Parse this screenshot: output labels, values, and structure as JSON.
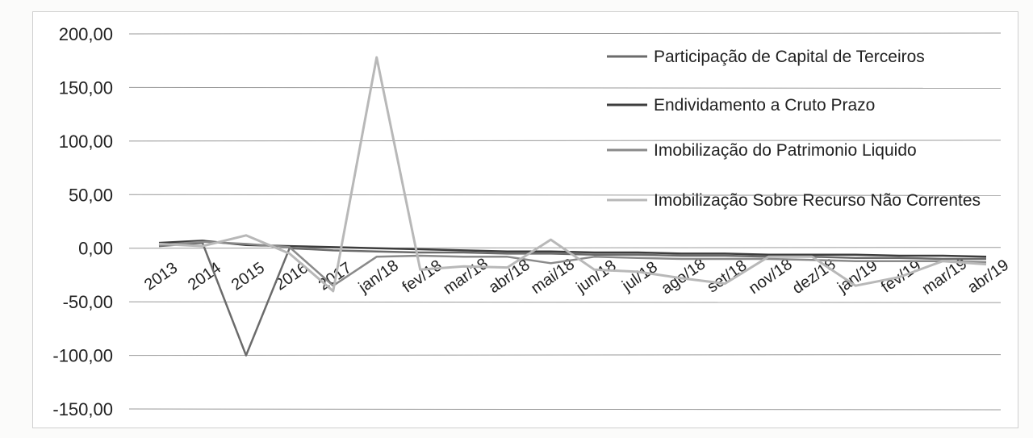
{
  "chart_data": {
    "type": "line",
    "title": "",
    "xlabel": "",
    "ylabel": "",
    "ylim": [
      -150,
      200
    ],
    "y_ticks": [
      "200,00",
      "150,00",
      "100,00",
      "50,00",
      "0,00",
      "-50,00",
      "-100,00",
      "-150,00"
    ],
    "y_tick_values": [
      200,
      150,
      100,
      50,
      0,
      -50,
      -100,
      -150
    ],
    "grid": true,
    "legend_position": "top-right",
    "categories": [
      "2013",
      "2014",
      "2015",
      "2016",
      "2017",
      "jan/18",
      "fev/18",
      "mar/18",
      "abr/18",
      "mai/18",
      "jun/18",
      "jul/18",
      "ago/18",
      "set/18",
      "nov/18",
      "dez/18",
      "jan/19",
      "fev/19",
      "mar/19",
      "abr/19"
    ],
    "series": [
      {
        "name": "Participação de Capital de Terceiros",
        "color": "#6b6b6b",
        "values": [
          2,
          5,
          -100,
          0,
          -2,
          -3,
          -4,
          -4,
          -5,
          -5,
          -6,
          -6,
          -7,
          -7,
          -8,
          -8,
          -9,
          -9,
          -10,
          -10
        ]
      },
      {
        "name": "Endividamento a Cruto Prazo",
        "color": "#3d3d3d",
        "values": [
          5,
          7,
          3,
          2,
          1,
          0,
          -1,
          -2,
          -3,
          -3,
          -4,
          -4,
          -5,
          -5,
          -6,
          -6,
          -6,
          -7,
          -7,
          -8
        ]
      },
      {
        "name": "Imobilização do Patrimonio Liquido",
        "color": "#8a8a8a",
        "values": [
          3,
          6,
          4,
          1,
          -35,
          -8,
          -7,
          -8,
          -8,
          -14,
          -8,
          -9,
          -10,
          -10,
          -10,
          -11,
          -12,
          -12,
          -12,
          -13
        ]
      },
      {
        "name": "Imobilização Sobre Recurso Não Correntes",
        "color": "#b8b8b8",
        "values": [
          4,
          2,
          12,
          -5,
          -40,
          178,
          -20,
          -17,
          -18,
          8,
          -20,
          -22,
          -28,
          -33,
          -8,
          -8,
          -35,
          -27,
          -12,
          -15
        ]
      }
    ]
  }
}
